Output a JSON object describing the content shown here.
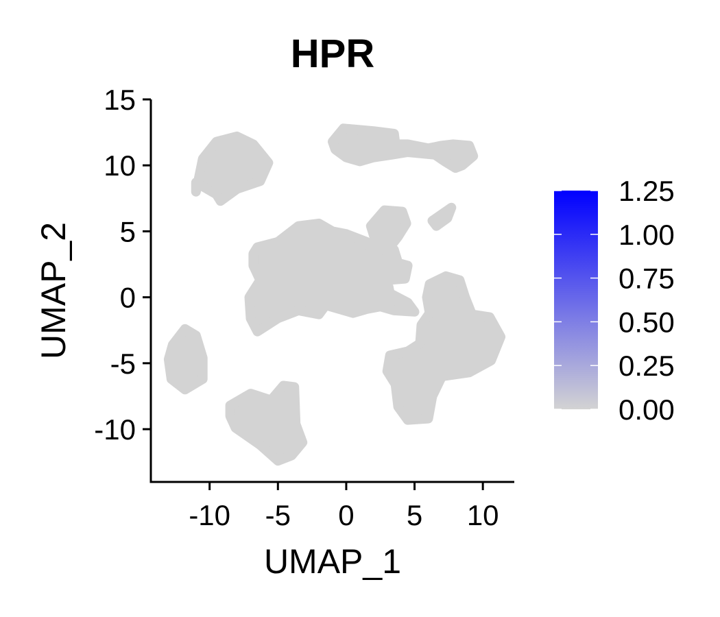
{
  "chart_data": {
    "type": "scatter",
    "title": "HPR",
    "xlabel": "UMAP_1",
    "ylabel": "UMAP_2",
    "xlim": [
      -14.3,
      12.3
    ],
    "ylim": [
      -14,
      15
    ],
    "x_ticks": [
      -10,
      -5,
      0,
      5,
      10
    ],
    "x_tick_labels": [
      "-10",
      "-5",
      "0",
      "5",
      "10"
    ],
    "y_ticks": [
      -10,
      -5,
      0,
      5,
      10,
      15
    ],
    "y_tick_labels": [
      "-10",
      "-5",
      "0",
      "5",
      "10",
      "15"
    ],
    "point_color": "#d3d3d3",
    "point_value": 0,
    "clusters": [
      {
        "polygon": [
          [
            -11,
            8
          ],
          [
            -10.5,
            10.5
          ],
          [
            -9.5,
            11.8
          ],
          [
            -8,
            12.2
          ],
          [
            -6.8,
            11.6
          ],
          [
            -5.7,
            10.2
          ],
          [
            -6.3,
            8.8
          ],
          [
            -8,
            8.2
          ],
          [
            -9.2,
            7.3
          ],
          [
            -9.5,
            7.8
          ],
          [
            -11,
            8.7
          ]
        ]
      },
      {
        "polygon": [
          [
            -1,
            11.8
          ],
          [
            -0.2,
            12.8
          ],
          [
            2,
            12.6
          ],
          [
            3.5,
            12.4
          ],
          [
            3.6,
            11.6
          ],
          [
            4.5,
            11.6
          ],
          [
            6,
            11.3
          ],
          [
            7,
            11.5
          ],
          [
            7.8,
            11.6
          ],
          [
            9,
            11.5
          ],
          [
            9.3,
            10.7
          ],
          [
            8.5,
            10
          ],
          [
            8,
            9.8
          ],
          [
            7.2,
            10.3
          ],
          [
            6.5,
            10.8
          ],
          [
            4.5,
            11
          ],
          [
            3.3,
            10.8
          ],
          [
            2,
            10.6
          ],
          [
            1,
            10.3
          ],
          [
            0,
            10.6
          ],
          [
            -0.8,
            11.2
          ]
        ]
      },
      {
        "polygon": [
          [
            -6.5,
            3.8
          ],
          [
            -5,
            4.2
          ],
          [
            -3.5,
            5.4
          ],
          [
            -2,
            5.6
          ],
          [
            -1,
            5
          ],
          [
            0,
            4.8
          ],
          [
            1.5,
            4.2
          ],
          [
            2,
            3.3
          ],
          [
            3.5,
            3.6
          ],
          [
            3.8,
            2.6
          ],
          [
            4.5,
            2.4
          ],
          [
            4.3,
            1.4
          ],
          [
            3,
            1.3
          ],
          [
            3.2,
            0.3
          ],
          [
            4.5,
            -0.4
          ],
          [
            5,
            -1.1
          ],
          [
            3.5,
            -1
          ],
          [
            2.5,
            -0.7
          ],
          [
            1.5,
            -0.9
          ],
          [
            0.5,
            -1.2
          ],
          [
            -0.5,
            -0.9
          ],
          [
            -1.5,
            -0.6
          ],
          [
            -2,
            -1.3
          ],
          [
            -3.5,
            -1
          ],
          [
            -5,
            -1.6
          ],
          [
            -6.5,
            -2.6
          ],
          [
            -7,
            -1.6
          ],
          [
            -7.1,
            0
          ],
          [
            -6.3,
            1.3
          ],
          [
            -6.8,
            2.4
          ],
          [
            -6.8,
            3.3
          ]
        ]
      },
      {
        "polygon": [
          [
            1.8,
            5.4
          ],
          [
            2.8,
            6.6
          ],
          [
            4.1,
            6.5
          ],
          [
            4.4,
            5.6
          ],
          [
            3.8,
            4.6
          ],
          [
            3.2,
            3.8
          ],
          [
            2.6,
            3.6
          ],
          [
            2.1,
            4.4
          ]
        ]
      },
      {
        "polygon": [
          [
            6.3,
            5.8
          ],
          [
            7.7,
            6.8
          ],
          [
            7.4,
            6
          ],
          [
            6.6,
            5.4
          ]
        ]
      },
      {
        "polygon": [
          [
            6.1,
            1
          ],
          [
            7.3,
            1.6
          ],
          [
            8.3,
            1.3
          ],
          [
            8.7,
            0
          ],
          [
            9.2,
            -1.3
          ],
          [
            10.5,
            -1.5
          ],
          [
            11.3,
            -3
          ],
          [
            10.6,
            -4.8
          ],
          [
            9,
            -5.7
          ],
          [
            7,
            -6
          ],
          [
            6.3,
            -7.5
          ],
          [
            6,
            -9.2
          ],
          [
            4.5,
            -9.3
          ],
          [
            3.8,
            -8.3
          ],
          [
            3.6,
            -6.6
          ],
          [
            3,
            -5.6
          ],
          [
            3.2,
            -4.4
          ],
          [
            4.5,
            -4.1
          ],
          [
            5.4,
            -3.5
          ],
          [
            5.5,
            -2.1
          ],
          [
            6.1,
            -1.2
          ],
          [
            5.9,
            0
          ]
        ]
      },
      {
        "polygon": [
          [
            -12.7,
            -3.6
          ],
          [
            -11.8,
            -2.4
          ],
          [
            -11,
            -2.9
          ],
          [
            -10.5,
            -4.6
          ],
          [
            -10.5,
            -6.2
          ],
          [
            -11.8,
            -7
          ],
          [
            -12.8,
            -6.2
          ],
          [
            -13,
            -4.7
          ]
        ]
      },
      {
        "polygon": [
          [
            -8.5,
            -8.2
          ],
          [
            -7,
            -7.3
          ],
          [
            -5.5,
            -7.8
          ],
          [
            -4.6,
            -6.7
          ],
          [
            -3.8,
            -6.8
          ],
          [
            -3.7,
            -9.6
          ],
          [
            -3.2,
            -11
          ],
          [
            -4,
            -12
          ],
          [
            -5,
            -12.4
          ],
          [
            -6.3,
            -11.2
          ],
          [
            -8.1,
            -9.9
          ],
          [
            -8.5,
            -9
          ]
        ]
      }
    ],
    "colorbar": {
      "min": 0,
      "max": 1.25,
      "ticks": [
        0,
        0.25,
        0.5,
        0.75,
        1,
        1.25
      ],
      "tick_labels": [
        "0.00",
        "0.25",
        "0.50",
        "0.75",
        "1.00",
        "1.25"
      ],
      "low_color": "#d3d3d3",
      "high_color": "#0000ff"
    }
  }
}
